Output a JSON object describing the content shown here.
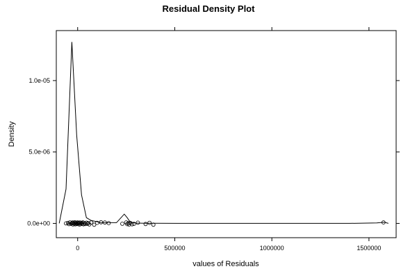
{
  "chart_data": {
    "type": "density",
    "title": "Residual Density Plot",
    "xlabel": "values of Residuals",
    "ylabel": "Density",
    "xlim": [
      -110000,
      1640000
    ],
    "ylim": [
      -1e-06,
      1.35e-05
    ],
    "x_ticks": [
      {
        "value": 0,
        "label": "0"
      },
      {
        "value": 500000,
        "label": "500000"
      },
      {
        "value": 1000000,
        "label": "1000000"
      },
      {
        "value": 1500000,
        "label": "1500000"
      }
    ],
    "y_ticks": [
      {
        "value": 0,
        "label": "0.0e+00"
      },
      {
        "value": 5e-06,
        "label": "5.0e-06"
      },
      {
        "value": 1e-05,
        "label": "1.0e-05"
      }
    ],
    "grid": false,
    "density_curve": {
      "x": [
        -95000,
        -60000,
        -30000,
        -5000,
        20000,
        45000,
        70000,
        120000,
        200000,
        240000,
        255000,
        270000,
        300000,
        350000,
        400000,
        600000,
        800000,
        1000000,
        1200000,
        1400000,
        1540000,
        1580000,
        1600000
      ],
      "y": [
        0,
        2.4e-06,
        1.27e-05,
        6.2e-06,
        2e-06,
        4e-07,
        2e-07,
        6e-08,
        5e-08,
        6.5e-07,
        4e-07,
        1e-07,
        2e-08,
        1e-08,
        5e-09,
        3e-09,
        2e-09,
        2e-09,
        2e-09,
        4e-09,
        3e-08,
        8e-08,
        0
      ]
    },
    "points": {
      "x": [
        -60000,
        -50000,
        -45000,
        -40000,
        -35000,
        -30000,
        -27000,
        -24000,
        -21000,
        -18000,
        -15000,
        -12000,
        -9000,
        -6000,
        -3000,
        0,
        3000,
        6000,
        9000,
        12000,
        15000,
        18000,
        21000,
        24000,
        27000,
        30000,
        35000,
        40000,
        45000,
        50000,
        55000,
        60000,
        70000,
        85000,
        100000,
        120000,
        140000,
        160000,
        230000,
        250000,
        255000,
        260000,
        265000,
        270000,
        280000,
        290000,
        310000,
        350000,
        370000,
        390000,
        1575000
      ],
      "y": [
        0,
        3e-08,
        -5e-08,
        7e-08,
        -3e-08,
        1e-08,
        6e-08,
        -7e-08,
        4e-08,
        -2e-08,
        8e-08,
        -6e-08,
        2e-08,
        5e-08,
        -4e-08,
        7e-08,
        -1e-08,
        3e-08,
        -8e-08,
        6e-08,
        -5e-08,
        1e-08,
        4e-08,
        -3e-08,
        7e-08,
        -6e-08,
        2e-08,
        -4e-08,
        5e-08,
        -2e-08,
        3e-08,
        -7e-08,
        6e-08,
        -9e-08,
        4e-08,
        8e-08,
        6e-08,
        2e-08,
        -2e-08,
        7e-08,
        -5e-08,
        1e-08,
        -8e-08,
        4e-08,
        -6e-08,
        -3e-08,
        5e-08,
        -4e-08,
        4e-08,
        -9e-08,
        7e-08
      ]
    }
  }
}
